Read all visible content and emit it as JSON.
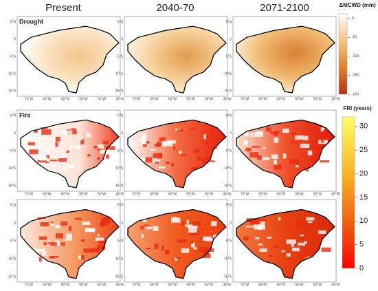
{
  "column_headers": [
    "Present",
    "2040-70",
    "2071-2100"
  ],
  "row_labels": [
    "Drought",
    "Fire"
  ],
  "latitude_ticks": [
    "5°N",
    "0",
    "5°S",
    "10°S",
    "15°S"
  ],
  "longitude_ticks": [
    "70°W",
    "65°W",
    "60°W",
    "55°W",
    "50°W",
    "45°W"
  ],
  "colorbars": [
    {
      "title": "ΔMCWD (mm)",
      "lim": [
        -200,
        12
      ],
      "ticks": [
        0,
        -50,
        -100,
        -150,
        -200
      ]
    },
    {
      "title": "FRI (years)",
      "lim": [
        0,
        32
      ],
      "ticks": [
        30,
        25,
        20,
        15,
        10,
        5,
        0
      ]
    }
  ]
}
